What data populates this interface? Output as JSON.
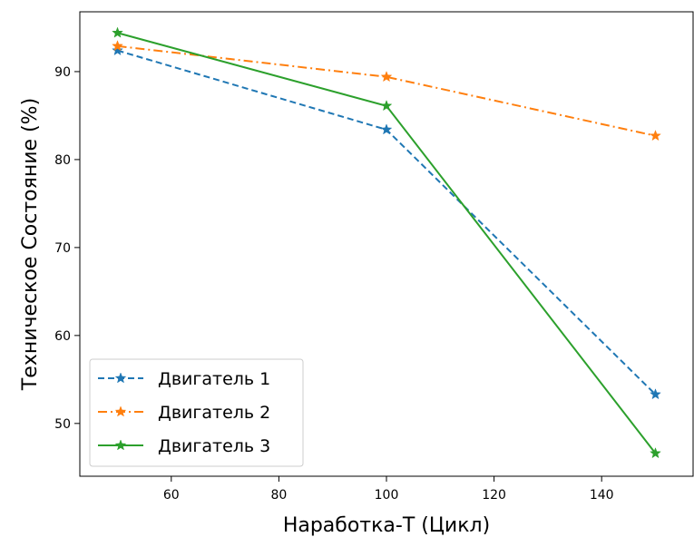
{
  "chart_data": {
    "type": "line",
    "title": "",
    "xlabel": "Наработка-Т (Цикл)",
    "ylabel": "Техническое Состояние (%)",
    "xlim": [
      43,
      157
    ],
    "ylim": [
      44,
      96.8
    ],
    "x_ticks": [
      60,
      80,
      100,
      120,
      140
    ],
    "y_ticks": [
      50,
      60,
      70,
      80,
      90
    ],
    "grid": false,
    "legend_position": "lower-left",
    "x": [
      50,
      100,
      150
    ],
    "series": [
      {
        "name": "Двигатель 1",
        "values": [
          92.4,
          83.4,
          53.3
        ],
        "color": "#1f77b4",
        "linestyle": "dashed",
        "marker": "star"
      },
      {
        "name": "Двигатель 2",
        "values": [
          92.9,
          89.4,
          82.7
        ],
        "color": "#ff7f0e",
        "linestyle": "dashdot",
        "marker": "star"
      },
      {
        "name": "Двигатель 3",
        "values": [
          94.4,
          86.1,
          46.6
        ],
        "color": "#2ca02c",
        "linestyle": "solid",
        "marker": "star"
      }
    ]
  }
}
